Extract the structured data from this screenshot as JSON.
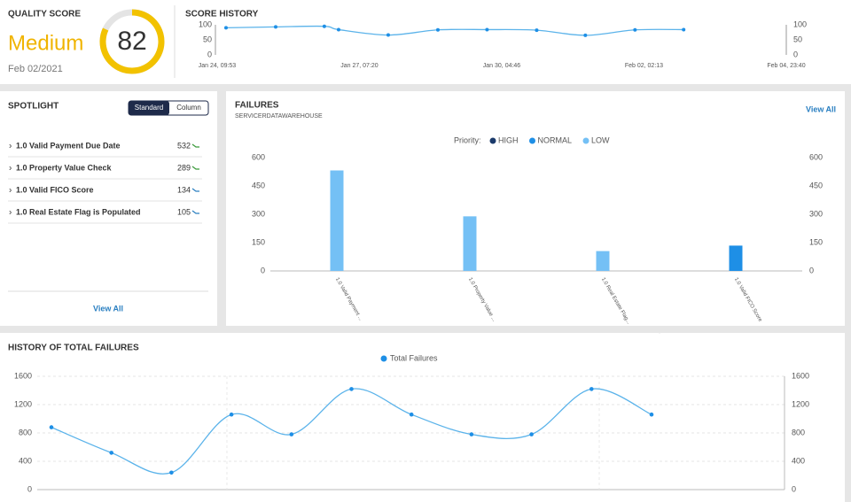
{
  "quality_score": {
    "title": "QUALITY SCORE",
    "rating": "Medium",
    "score": 82,
    "date": "Feb 02/2021"
  },
  "spotlight": {
    "title": "SPOTLIGHT",
    "toggle": [
      "Standard",
      "Column"
    ],
    "items": [
      {
        "label": "1.0 Valid Payment Due Date",
        "value": 532
      },
      {
        "label": "1.0 Property Value Check",
        "value": 289
      },
      {
        "label": "1.0 Valid FICO Score",
        "value": 134
      },
      {
        "label": "1.0 Real Estate Flag is Populated",
        "value": 105
      }
    ],
    "link": "View All"
  },
  "failures_link": "View All",
  "chart_data": [
    {
      "type": "line",
      "title": "SCORE HISTORY",
      "color": "#5bb3ea",
      "x": [
        0.18,
        1.19,
        2.18,
        2.47,
        3.48,
        4.49,
        5.49,
        6.5,
        7.49,
        8.5,
        9.49
      ],
      "values": [
        90,
        93,
        95,
        84,
        66,
        83,
        84,
        82,
        65,
        83,
        84
      ],
      "xlim": [
        0,
        11.578
      ],
      "xticks": [
        {
          "value": 0,
          "label": "Jan 24, 09:53"
        },
        {
          "value": 2.894,
          "label": "Jan 27, 07:20"
        },
        {
          "value": 5.789,
          "label": "Jan 30, 04:46"
        },
        {
          "value": 8.683,
          "label": "Feb 02, 02:13"
        },
        {
          "value": 11.578,
          "label": "Feb 04, 23:40"
        }
      ],
      "ylim": [
        0,
        100
      ],
      "yticks": [
        0,
        50,
        100
      ],
      "y2lim": [
        0,
        100
      ],
      "y2ticks": [
        0,
        50,
        100
      ]
    },
    {
      "type": "bar",
      "title": "FAILURES",
      "subtitle": "SERVICERDATAWAREHOUSE",
      "legend_title": "Priority:",
      "categories": [
        "1.0 Valid Payment ...",
        "1.0 Property Value ...",
        "1.0 Real Estate Flag...",
        "1.0 Valid FICO Score"
      ],
      "series": [
        {
          "name": "HIGH",
          "color": "#1b3a6b",
          "values": [
            null,
            null,
            null,
            null
          ]
        },
        {
          "name": "NORMAL",
          "color": "#1e8fe6",
          "values": [
            null,
            null,
            null,
            134
          ]
        },
        {
          "name": "LOW",
          "color": "#74c0f5",
          "values": [
            532,
            289,
            105,
            null
          ]
        }
      ],
      "ylim": [
        0,
        600
      ],
      "yticks": [
        0,
        150,
        300,
        450,
        600
      ],
      "y2lim": [
        0,
        600
      ],
      "y2ticks": [
        0,
        150,
        300,
        450,
        600
      ]
    },
    {
      "type": "line",
      "title": "HISTORY OF TOTAL FAILURES",
      "smooth": true,
      "categories": [
        null,
        null,
        null,
        null,
        null,
        null,
        null,
        null,
        null,
        null,
        null
      ],
      "series": [
        {
          "name": "Total Failures",
          "color": "#5bb3ea",
          "values": [
            880,
            520,
            240,
            1060,
            780,
            1420,
            1060,
            780,
            780,
            1420,
            1060
          ]
        }
      ],
      "ylim": [
        0,
        1600
      ],
      "yticks": [
        0,
        400,
        800,
        1200,
        1600
      ],
      "y2lim": [
        0,
        1600
      ],
      "y2ticks": [
        0,
        400,
        800,
        1200,
        1600
      ]
    }
  ]
}
